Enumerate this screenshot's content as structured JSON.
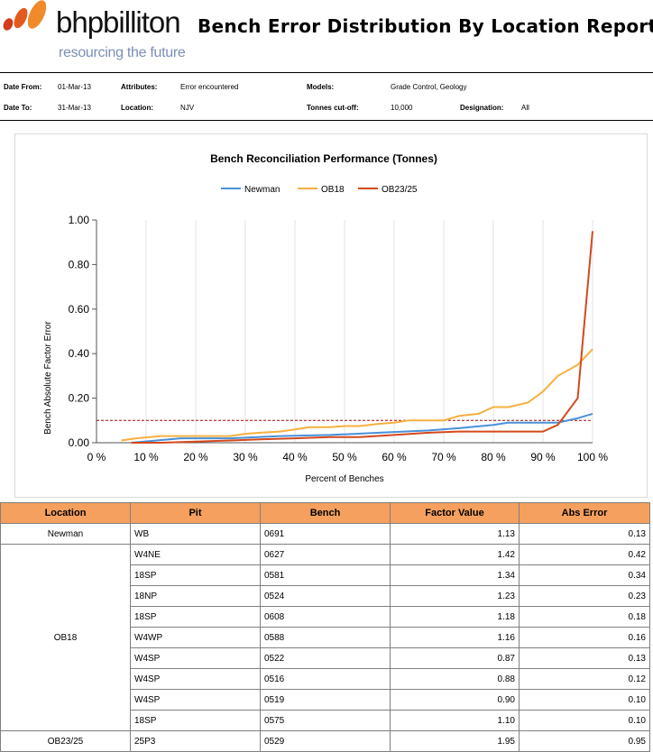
{
  "header": {
    "brand": "bhpbilliton",
    "tagline": "resourcing the future",
    "title": "Bench Error Distribution By Location Report"
  },
  "params": {
    "date_from_label": "Date From:",
    "date_from": "01-Mar-13",
    "attributes_label": "Attributes:",
    "attributes": "Error encountered",
    "models_label": "Models:",
    "models": "Grade Control, Geology",
    "date_to_label": "Date To:",
    "date_to": "31-Mar-13",
    "location_label": "Location:",
    "location": "NJV",
    "tonnes_label": "Tonnes cut-off:",
    "tonnes": "10,000",
    "designation_label": "Designation:",
    "designation": "All"
  },
  "colors": {
    "brand_orange": "#e8662a",
    "header_fill": "#f5a05e",
    "newman": "#4a90d9",
    "ob18": "#f5b041",
    "ob2325": "#d4491c",
    "threshold": "#aa0000"
  },
  "chart_data": {
    "type": "line",
    "title": "Bench Reconciliation Performance (Tonnes)",
    "xlabel": "Percent of Benches",
    "ylabel": "Bench Absolute Factor Error",
    "xlim": [
      0,
      100
    ],
    "ylim": [
      0,
      1.0
    ],
    "x_ticks": [
      "0 %",
      "10 %",
      "20 %",
      "30 %",
      "40 %",
      "50 %",
      "60 %",
      "70 %",
      "80 %",
      "90 %",
      "100 %"
    ],
    "y_ticks": [
      "0.00",
      "0.20",
      "0.40",
      "0.60",
      "0.80",
      "1.00"
    ],
    "threshold": 0.1,
    "legend_position": "top",
    "series": [
      {
        "name": "Newman",
        "x": [
          7,
          17,
          27,
          37,
          47,
          57,
          67,
          73,
          80,
          83,
          87,
          93,
          97,
          100
        ],
        "y": [
          0.0,
          0.02,
          0.02,
          0.03,
          0.035,
          0.045,
          0.055,
          0.065,
          0.08,
          0.09,
          0.09,
          0.09,
          0.11,
          0.13
        ]
      },
      {
        "name": "OB18",
        "x": [
          5,
          8,
          13,
          17,
          23,
          27,
          30,
          33,
          37,
          40,
          43,
          47,
          50,
          53,
          57,
          60,
          63,
          67,
          70,
          73,
          77,
          80,
          83,
          87,
          90,
          93,
          97,
          100
        ],
        "y": [
          0.01,
          0.02,
          0.03,
          0.03,
          0.03,
          0.03,
          0.04,
          0.045,
          0.05,
          0.06,
          0.07,
          0.07,
          0.075,
          0.075,
          0.085,
          0.09,
          0.1,
          0.1,
          0.1,
          0.12,
          0.13,
          0.16,
          0.16,
          0.18,
          0.23,
          0.3,
          0.35,
          0.42
        ]
      },
      {
        "name": "OB23/25",
        "x": [
          7,
          13,
          20,
          27,
          33,
          40,
          47,
          53,
          60,
          67,
          73,
          80,
          87,
          90,
          93,
          97,
          100
        ],
        "y": [
          0.0,
          0.0,
          0.005,
          0.01,
          0.015,
          0.02,
          0.025,
          0.025,
          0.035,
          0.045,
          0.05,
          0.05,
          0.05,
          0.05,
          0.08,
          0.2,
          0.95
        ]
      }
    ]
  },
  "table": {
    "headers": [
      "Location",
      "Pit",
      "Bench",
      "Factor Value",
      "Abs Error"
    ],
    "groups": [
      {
        "location": "Newman",
        "rows": [
          [
            "WB",
            "0691",
            "1.13",
            "0.13"
          ]
        ]
      },
      {
        "location": "OB18",
        "rows": [
          [
            "W4NE",
            "0627",
            "1.42",
            "0.42"
          ],
          [
            "18SP",
            "0581",
            "1.34",
            "0.34"
          ],
          [
            "18NP",
            "0524",
            "1.23",
            "0.23"
          ],
          [
            "18SP",
            "0608",
            "1.18",
            "0.18"
          ],
          [
            "W4WP",
            "0588",
            "1.16",
            "0.16"
          ],
          [
            "W4SP",
            "0522",
            "0.87",
            "0.13"
          ],
          [
            "W4SP",
            "0516",
            "0.88",
            "0.12"
          ],
          [
            "W4SP",
            "0519",
            "0.90",
            "0.10"
          ],
          [
            "18SP",
            "0575",
            "1.10",
            "0.10"
          ]
        ]
      },
      {
        "location": "OB23/25",
        "rows": [
          [
            "25P3",
            "0529",
            "1.95",
            "0.95"
          ]
        ]
      }
    ]
  }
}
